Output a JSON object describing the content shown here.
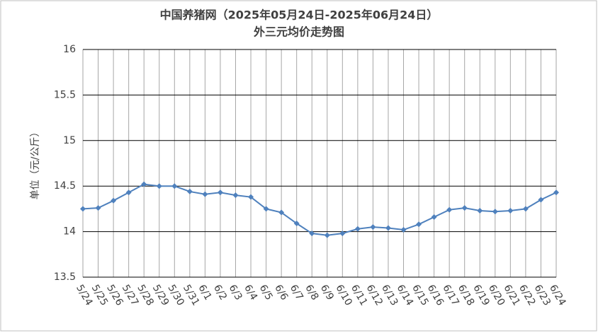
{
  "chart_data": {
    "type": "line",
    "title": "中国养猪网（2025年05月24日-2025年06月24日）",
    "subtitle": "外三元均价走势图",
    "y_label": "单位（元/公斤）",
    "categories": [
      "5/24",
      "5/25",
      "5/26",
      "5/27",
      "5/28",
      "5/29",
      "5/30",
      "5/31",
      "6/1",
      "6/2",
      "6/3",
      "6/4",
      "6/5",
      "6/6",
      "6/7",
      "6/8",
      "6/9",
      "6/10",
      "6/11",
      "6/12",
      "6/13",
      "6/14",
      "6/15",
      "6/16",
      "6/17",
      "6/18",
      "6/19",
      "6/20",
      "6/21",
      "6/22",
      "6/23",
      "6/24"
    ],
    "values": [
      14.25,
      14.26,
      14.34,
      14.43,
      14.52,
      14.5,
      14.5,
      14.44,
      14.41,
      14.43,
      14.4,
      14.38,
      14.25,
      14.21,
      14.09,
      13.98,
      13.96,
      13.98,
      14.03,
      14.05,
      14.04,
      14.02,
      14.08,
      14.16,
      14.24,
      14.26,
      14.23,
      14.22,
      14.23,
      14.25,
      14.35,
      14.43
    ],
    "color": "#4f81bd",
    "ylim": [
      13.5,
      16
    ],
    "yticks": [
      13.5,
      14,
      14.5,
      15,
      15.5,
      16
    ],
    "grid": true
  }
}
